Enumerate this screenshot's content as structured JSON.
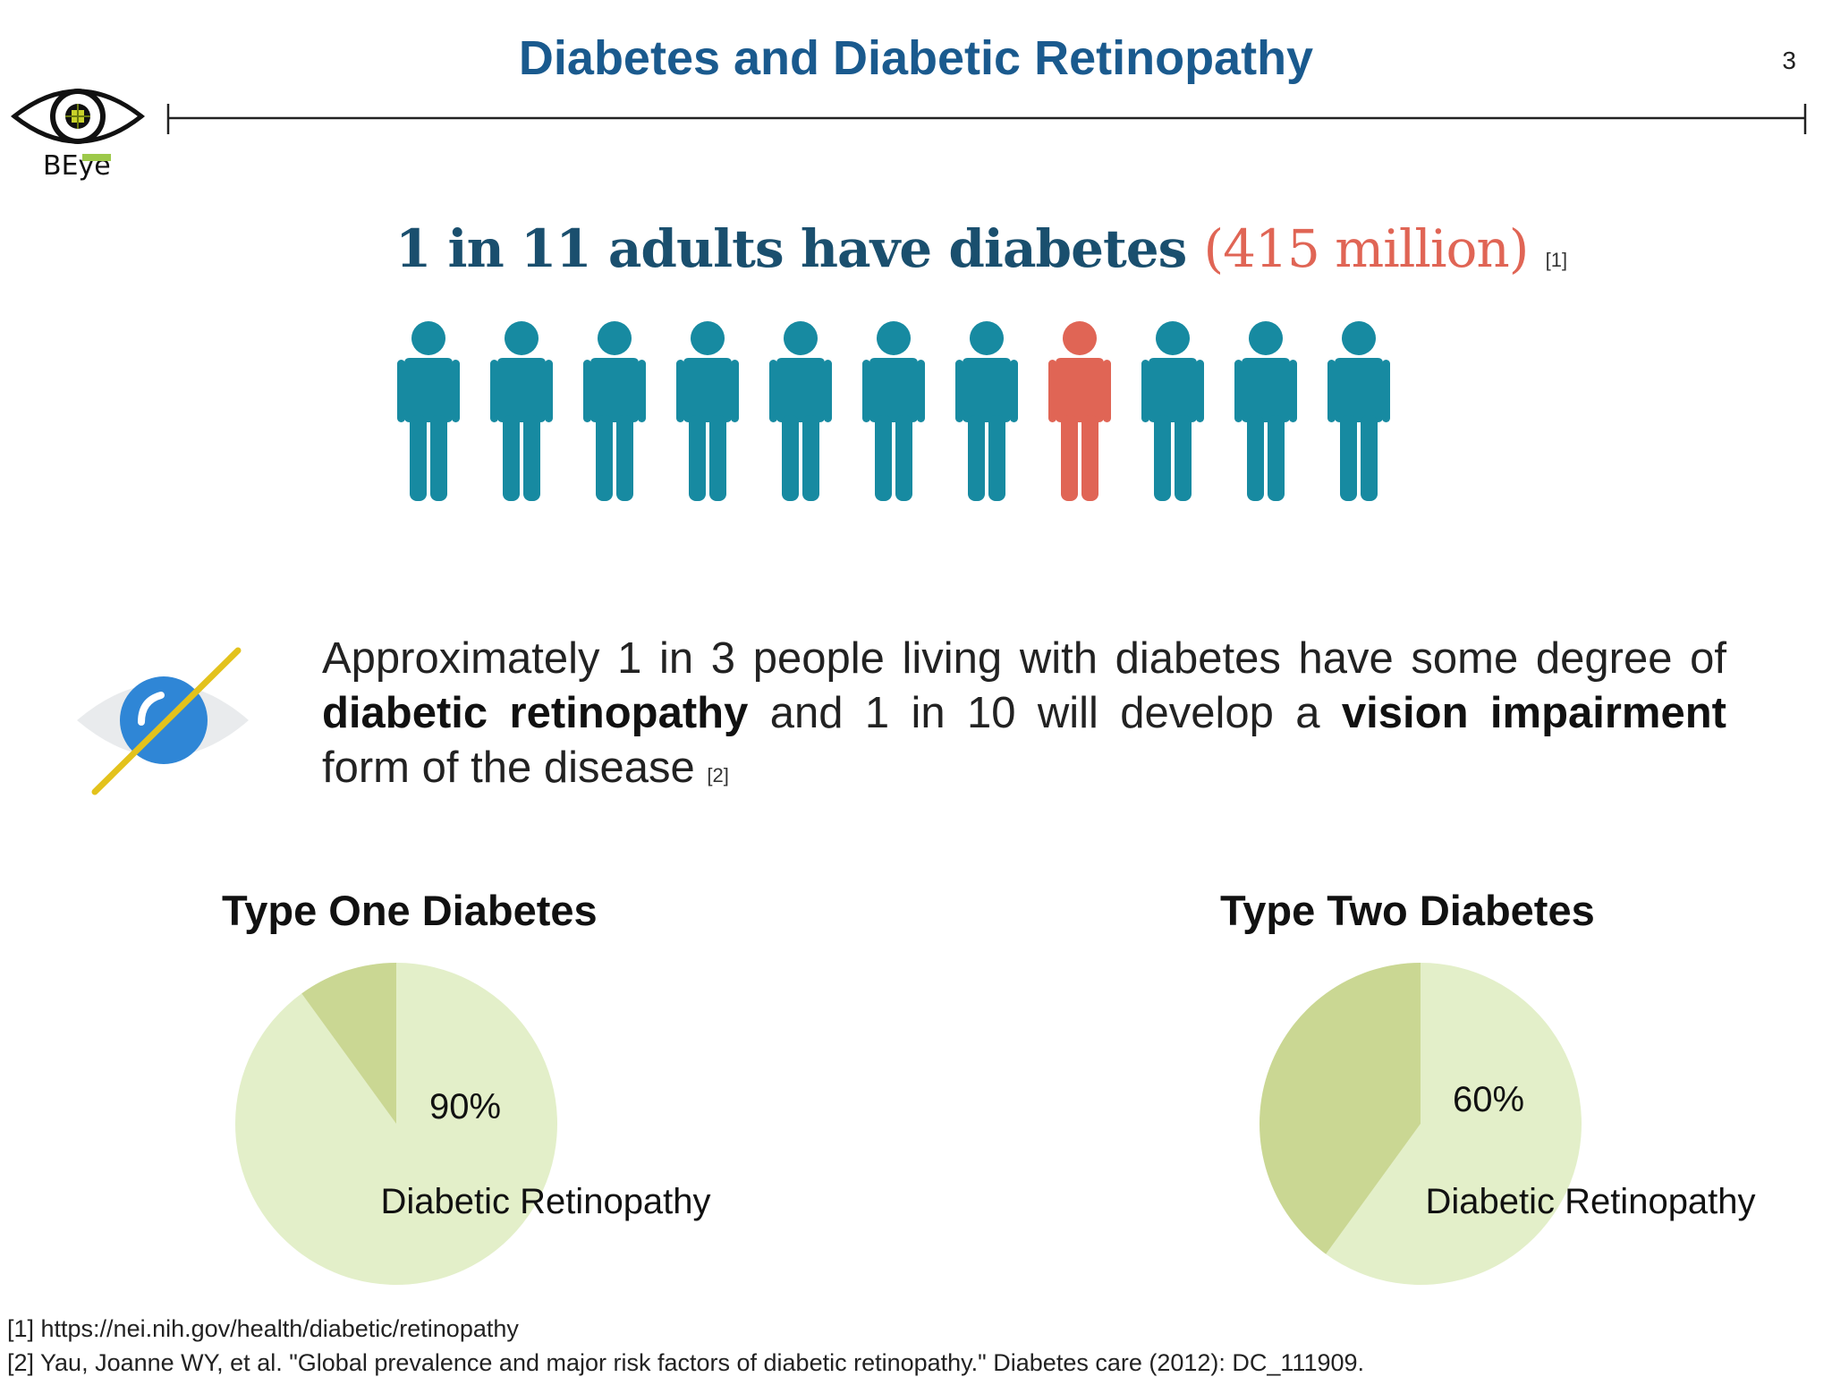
{
  "slide": {
    "title": "Diabetes and Diabetic Retinopathy",
    "page_number": "3"
  },
  "logo": {
    "text": "BEye",
    "icon": "eye-circuit-icon"
  },
  "headline": {
    "lead": "1 in 11",
    "middle": " adults have diabetes ",
    "highlight": "(415 million)",
    "ref": "[1]"
  },
  "pictogram": {
    "total_people": 11,
    "highlighted_index": 7,
    "colors": {
      "normal": "#178aa1",
      "highlighted": "#e06555"
    }
  },
  "paragraph": {
    "part1": "Approximately 1 in 3 people living with diabetes have some degree of ",
    "bold1": "diabetic retinopathy",
    "part2": " and 1 in 10 will develop a ",
    "bold2": "vision impairment",
    "part3": " form of the disease",
    "ref": "[2]"
  },
  "chart_data": [
    {
      "type": "pie",
      "title": "Type One Diabetes",
      "slices": [
        {
          "label": "Diabetic Retinopathy",
          "value": 90,
          "color": "#e3efc9"
        },
        {
          "label": "",
          "value": 10,
          "color": "#cad793"
        }
      ],
      "data_label": "90%",
      "category_label": "Diabetic Retinopathy"
    },
    {
      "type": "pie",
      "title": "Type Two Diabetes",
      "slices": [
        {
          "label": "Diabetic Retinopathy",
          "value": 60,
          "color": "#e3efc9"
        },
        {
          "label": "",
          "value": 40,
          "color": "#cad793"
        }
      ],
      "data_label": "60%",
      "category_label": "Diabetic Retinopathy"
    }
  ],
  "footer": {
    "ref1": "[1] https://nei.nih.gov/health/diabetic/retinopathy",
    "ref2": "[2] Yau, Joanne WY, et al. \"Global prevalence and major risk factors of diabetic retinopathy.\" Diabetes care (2012): DC_111909."
  }
}
